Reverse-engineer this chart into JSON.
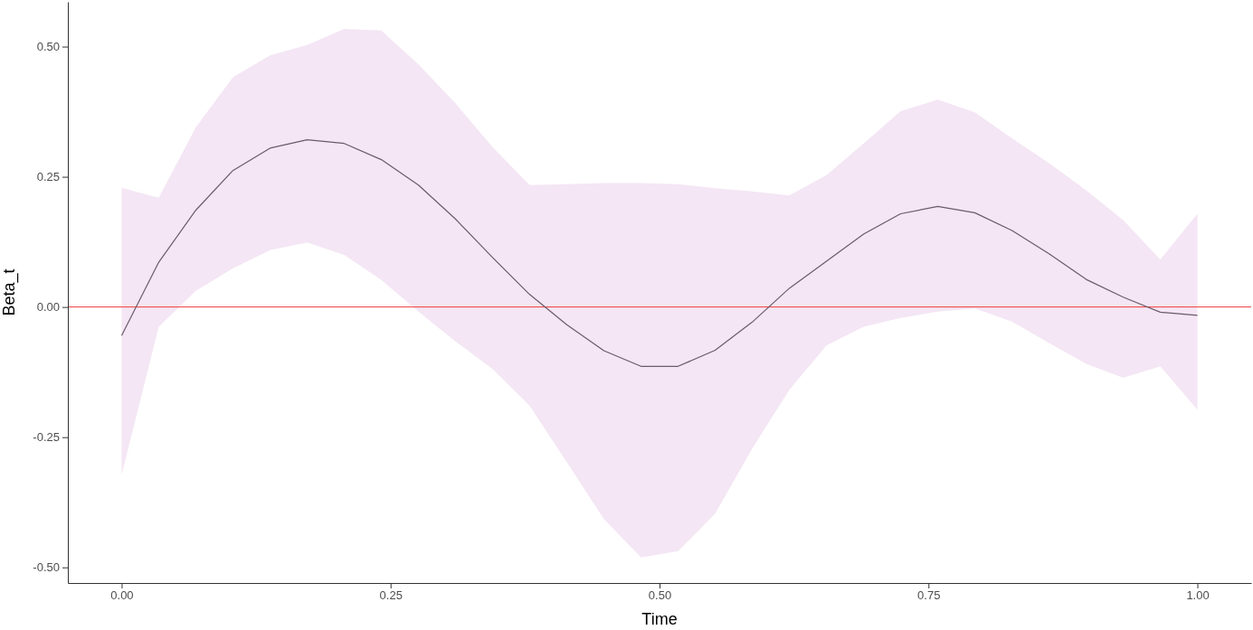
{
  "chart_data": {
    "type": "line",
    "xlabel": "Time",
    "ylabel": "Beta_t",
    "x": [
      0,
      0.0345,
      0.069,
      0.1034,
      0.1379,
      0.1724,
      0.2069,
      0.2414,
      0.2759,
      0.3103,
      0.3448,
      0.3793,
      0.4138,
      0.4483,
      0.4828,
      0.5172,
      0.5517,
      0.5862,
      0.6207,
      0.6552,
      0.6897,
      0.7241,
      0.7586,
      0.7931,
      0.8276,
      0.8621,
      0.8966,
      0.931,
      0.9655,
      1
    ],
    "series": [
      {
        "color": "#6b5a6b",
        "values": [
          -0.055,
          0.086,
          0.186,
          0.262,
          0.305,
          0.321,
          0.314,
          0.283,
          0.234,
          0.169,
          0.095,
          0.024,
          -0.034,
          -0.084,
          -0.114,
          -0.114,
          -0.083,
          -0.029,
          0.036,
          0.088,
          0.14,
          0.179,
          0.193,
          0.181,
          0.147,
          0.102,
          0.053,
          0.019,
          -0.01,
          -0.016
        ],
        "upper": [
          0.229,
          0.21,
          0.345,
          0.441,
          0.483,
          0.503,
          0.534,
          0.531,
          0.466,
          0.391,
          0.307,
          0.234,
          0.236,
          0.238,
          0.238,
          0.236,
          0.228,
          0.222,
          0.214,
          0.253,
          0.314,
          0.376,
          0.398,
          0.374,
          0.324,
          0.276,
          0.224,
          0.167,
          0.091,
          0.179
        ],
        "lower": [
          -0.322,
          -0.038,
          0.031,
          0.074,
          0.109,
          0.124,
          0.1,
          0.052,
          -0.009,
          -0.066,
          -0.119,
          -0.19,
          -0.298,
          -0.407,
          -0.481,
          -0.469,
          -0.397,
          -0.272,
          -0.159,
          -0.074,
          -0.038,
          -0.021,
          -0.009,
          -0.003,
          -0.028,
          -0.069,
          -0.109,
          -0.136,
          -0.114,
          -0.197
        ]
      }
    ],
    "xlim": [
      -0.05,
      1.05
    ],
    "ylim": [
      -0.53,
      0.586
    ],
    "xticks": [
      {
        "value": 0,
        "label": "0.00"
      },
      {
        "value": 0.25,
        "label": "0.25"
      },
      {
        "value": 0.5,
        "label": "0.50"
      },
      {
        "value": 0.75,
        "label": "0.75"
      },
      {
        "value": 1,
        "label": "1.00"
      }
    ],
    "yticks": [
      {
        "value": -0.5,
        "label": "-0.50"
      },
      {
        "value": -0.25,
        "label": "-0.25"
      },
      {
        "value": 0,
        "label": "0.00"
      },
      {
        "value": 0.25,
        "label": "0.25"
      },
      {
        "value": 0.5,
        "label": "0.50"
      }
    ],
    "ref_lines": [
      {
        "axis": "y",
        "value": 0,
        "color": "#ee3b3b"
      }
    ],
    "grid": false
  }
}
